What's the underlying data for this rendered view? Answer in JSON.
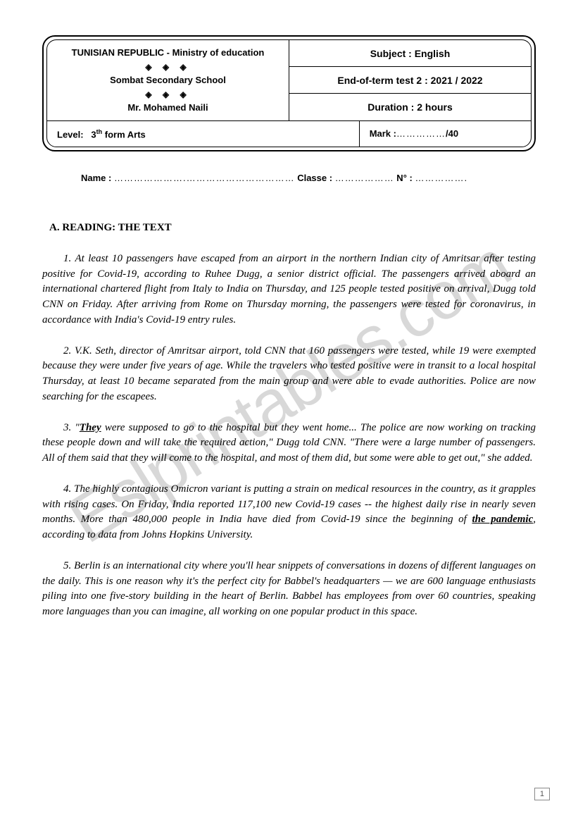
{
  "header": {
    "left_top_line1": "TUNISIAN REPUBLIC - Ministry of education",
    "ornament": "◈   ◈   ◈",
    "left_top_line2": "Sombat Secondary School",
    "left_top_line3": "Mr. Mohamed Naili",
    "subject_label": "Subject : English",
    "test_label": "End-of-term test 2 : 2021 / 2022",
    "duration_label": "Duration : 2 hours",
    "level_label": "Level:",
    "level_value": "3",
    "level_suffix": "th",
    "level_rest": " form Arts",
    "mark_label": "Mark :",
    "mark_dots": "……………",
    "mark_total": "/40"
  },
  "name_line": {
    "name_label": "Name : ",
    "name_dots": "………………….……………………………",
    "classe_label": " Classe : ",
    "classe_dots": "………………",
    "num_label": " N° : ",
    "num_dots": "……………."
  },
  "section_title": "A. READING: THE TEXT",
  "paragraphs": {
    "p1": "1. At least 10 passengers have escaped from an airport in the northern Indian city of Amritsar after testing positive for Covid-19, according to Ruhee Dugg, a senior district official. The passengers arrived aboard an international chartered flight from Italy to India on Thursday, and 125 people tested positive on arrival, Dugg told CNN on Friday. After arriving from Rome on Thursday morning, the passengers were tested for coronavirus, in accordance with India's Covid-19 entry rules.",
    "p2": "2. V.K. Seth, director of Amritsar airport, told CNN that 160 passengers were tested, while 19 were exempted because they were under five years of age. While the travelers who tested positive were in transit to a local hospital Thursday, at least 10 became separated from the main group and were able to evade authorities. Police are now searching for the escapees.",
    "p3_prefix": "3. \"",
    "p3_they": "They",
    "p3_rest": " were supposed to go to the hospital but they went home... The police are now working on tracking these people down and will take the required action,\" Dugg told CNN. \"There were a large number of passengers. All of them said that they will come to the hospital, and most of them did, but some were able to get out,\" she added.",
    "p4_prefix": "4. The highly contagious Omicron variant is putting a strain on medical resources in the country, as it grapples with rising cases. On Friday, India reported 117,100 new Covid-19 cases -- the highest daily rise in nearly seven months. More than 480,000 people in India have died from Covid-19 since the beginning of ",
    "p4_pandemic": "the pandemic",
    "p4_rest": ", according to data from Johns Hopkins University.",
    "p5": "5. Berlin is an international city where you'll hear snippets of conversations in dozens of different languages on the daily. This is one reason why it's the perfect city for Babbel's headquarters — we are 600 language enthusiasts piling into one five-story building in the heart of Berlin. Babbel has employees from over 60 countries, speaking more languages than you can imagine, all working on one popular product in this space."
  },
  "watermark": "Eslprintables.com",
  "page_number": "1"
}
